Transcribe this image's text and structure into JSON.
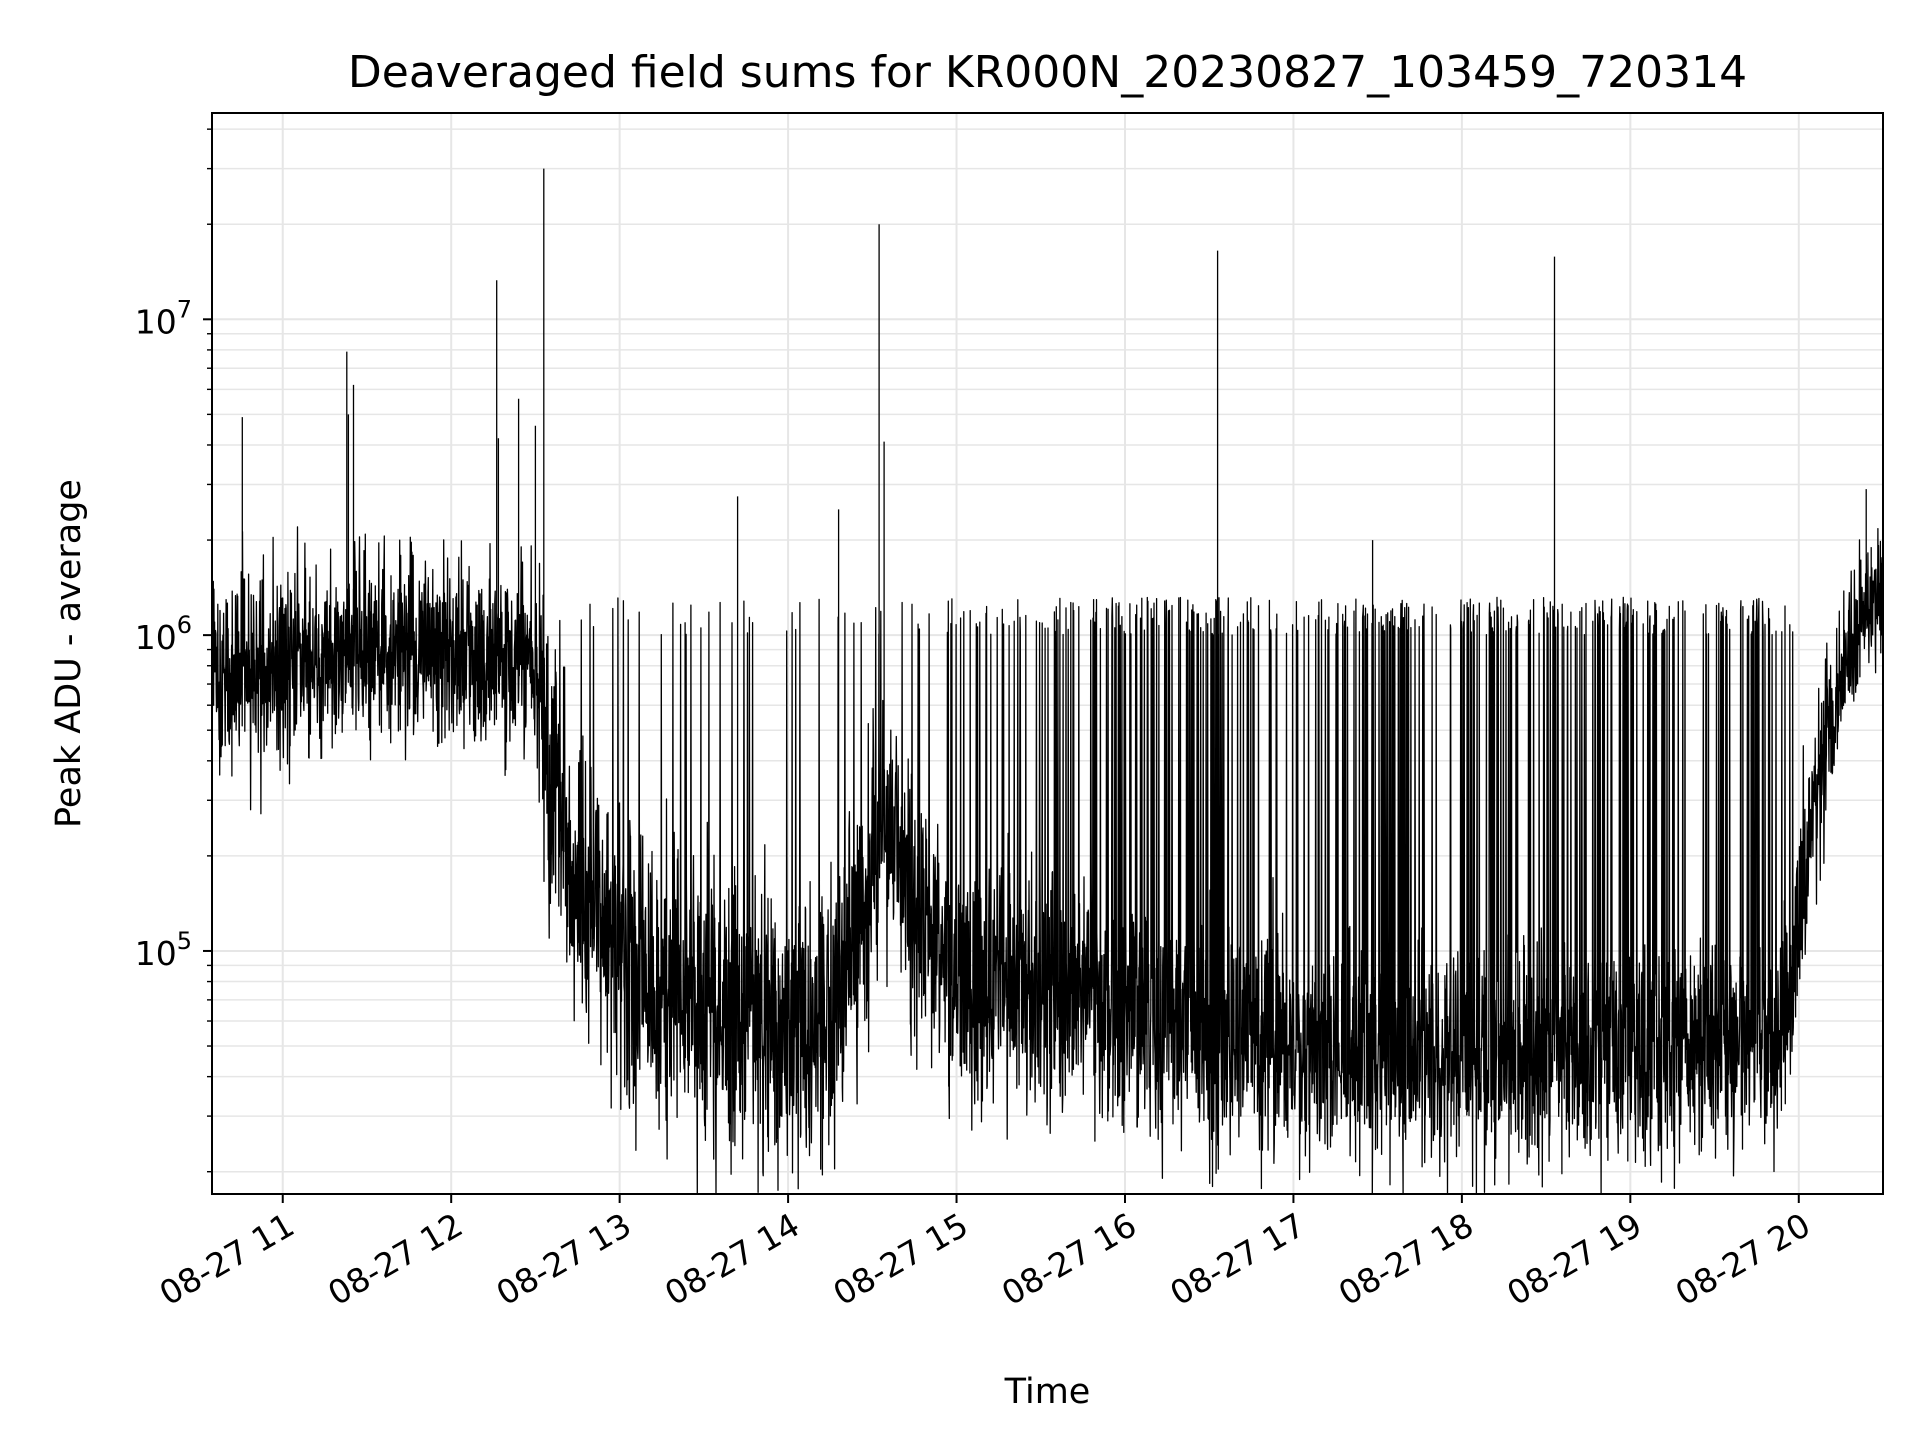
{
  "chart_data": {
    "type": "line",
    "title": "Deaveraged field sums for KR000N_20230827_103459_720314",
    "xlabel": "Time",
    "ylabel": "Peak ADU - average",
    "yscale": "log",
    "ylim": [
      17000,
      45000000
    ],
    "xlim_hours": [
      10.58,
      20.5
    ],
    "grid": true,
    "legend": "none",
    "line_color": "#000000",
    "grid_color": "#e6e6e6",
    "x_ticks": [
      {
        "hour": 11,
        "label": "08-27 11"
      },
      {
        "hour": 12,
        "label": "08-27 12"
      },
      {
        "hour": 13,
        "label": "08-27 13"
      },
      {
        "hour": 14,
        "label": "08-27 14"
      },
      {
        "hour": 15,
        "label": "08-27 15"
      },
      {
        "hour": 16,
        "label": "08-27 16"
      },
      {
        "hour": 17,
        "label": "08-27 17"
      },
      {
        "hour": 18,
        "label": "08-27 18"
      },
      {
        "hour": 19,
        "label": "08-27 19"
      },
      {
        "hour": 20,
        "label": "08-27 20"
      }
    ],
    "y_ticks": [
      {
        "value": 100000,
        "base": "10",
        "exp": "5"
      },
      {
        "value": 1000000,
        "base": "10",
        "exp": "6"
      },
      {
        "value": 10000000,
        "base": "10",
        "exp": "7"
      }
    ],
    "series": [
      {
        "x": [
          "08-27 10:35",
          "08-27 10:45",
          "08-27 10:52",
          "08-27 11:00",
          "08-27 11:10",
          "08-27 11:20",
          "08-27 11:25",
          "08-27 11:30",
          "08-27 11:40",
          "08-27 11:50",
          "08-27 12:00",
          "08-27 12:10",
          "08-27 12:17",
          "08-27 12:25",
          "08-27 12:33",
          "08-27 12:40",
          "08-27 12:50",
          "08-27 13:00",
          "08-27 13:15",
          "08-27 13:30",
          "08-27 13:42",
          "08-27 13:50",
          "08-27 14:00",
          "08-27 14:15",
          "08-27 14:30",
          "08-27 14:33",
          "08-27 14:45",
          "08-27 15:00",
          "08-27 15:30",
          "08-27 16:00",
          "08-27 16:33",
          "08-27 17:00",
          "08-27 17:30",
          "08-27 18:00",
          "08-27 18:33",
          "08-27 19:00",
          "08-27 19:30",
          "08-27 19:50",
          "08-27 20:00",
          "08-27 20:15",
          "08-27 20:30"
        ],
        "y": [
          800000,
          1500000,
          4900000,
          900000,
          1200000,
          700000,
          7900000,
          800000,
          1000000,
          1300000,
          1200000,
          900000,
          13300000,
          1100000,
          30000000,
          300000,
          150000,
          200000,
          100000,
          70000,
          2700000,
          70000,
          80000,
          300000,
          400000,
          20000000,
          300000,
          70000,
          70000,
          60000,
          16500000,
          50000,
          60000,
          45000,
          15900000,
          45000,
          45000,
          50000,
          100000,
          1500000,
          1600000
        ]
      }
    ]
  }
}
